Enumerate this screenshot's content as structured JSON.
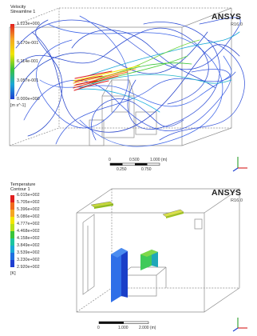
{
  "top": {
    "legend": {
      "title_line1": "Velocity",
      "title_line2": "Streamline 1",
      "ticks": [
        "1.223e+000",
        "9.170e-001",
        "6.114e-001",
        "3.057e-001",
        "0.000e+000"
      ],
      "unit": "[m s^-1]",
      "colors": [
        "#e11f1f",
        "#f5a623",
        "#f2e600",
        "#39c43a",
        "#1aa8d6",
        "#1f3fd1"
      ]
    },
    "brand": "ANSYS",
    "version": "R16.0",
    "scale": {
      "labels_top": [
        "0",
        "0.500",
        "1.000 (m)"
      ],
      "labels_bottom": [
        "0.250",
        "0.750"
      ]
    }
  },
  "bottom": {
    "legend": {
      "title_line1": "Temperature",
      "title_line2": "Contour 1",
      "ticks": [
        "6.015e+002",
        "5.705e+002",
        "5.396e+002",
        "5.086e+002",
        "4.777e+002",
        "4.468e+002",
        "4.158e+002",
        "3.849e+002",
        "3.539e+002",
        "3.230e+002",
        "2.920e+002"
      ],
      "unit": "[K]",
      "colors": [
        "#e11f1f",
        "#f06a1b",
        "#f5a623",
        "#f2e600",
        "#b9e01a",
        "#39c43a",
        "#1ac4a0",
        "#1aa8d6",
        "#1f6fe0",
        "#1f3fd1"
      ]
    },
    "brand": "ANSYS",
    "version": "R16.0",
    "scale": {
      "labels": [
        "0",
        "1.000",
        "2.000 (m)"
      ]
    }
  }
}
